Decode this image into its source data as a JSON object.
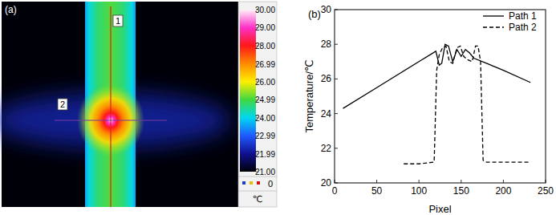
{
  "chart_data": [
    {
      "type": "thermal_image",
      "title": "(a)",
      "annotations": [
        "1",
        "2"
      ],
      "colorbar_lim": [
        21,
        30
      ],
      "colorbar_ticks": [
        {
          "value": 30,
          "label": "30.00"
        },
        {
          "value": 29,
          "label": "29.00"
        },
        {
          "value": 28,
          "label": "28.00"
        },
        26.99,
        {
          "value": 26,
          "label": "26.00"
        },
        24.99,
        {
          "value": 24,
          "label": "24.00"
        },
        22.99,
        21.99,
        {
          "value": 21,
          "label": "21.00"
        }
      ],
      "colorbar_unit": "℃",
      "colorbar_marker_label": "0",
      "colors": [
        "#fff0fa",
        "#ff30c8",
        "#ff1818",
        "#ff8a00",
        "#ffee00",
        "#40d840",
        "#00d8f0",
        "#1e5aff",
        "#101090",
        "#000008"
      ]
    },
    {
      "type": "line",
      "title": "(b)",
      "x_label": "Pixel",
      "y_label": "Temperature/℃",
      "xlim": [
        0,
        250
      ],
      "ylim": [
        20,
        30
      ],
      "xticks": [
        0,
        50,
        100,
        150,
        200,
        250
      ],
      "yticks": [
        20,
        22,
        24,
        26,
        28,
        30
      ],
      "legend": "top-right",
      "series": [
        {
          "name": "Path 1",
          "color": "#000000",
          "line_style": "solid",
          "x": [
            10,
            50,
            100,
            120,
            124,
            127,
            131,
            135,
            140,
            145,
            150,
            155,
            160,
            165,
            180,
            200,
            232
          ],
          "values": [
            24.3,
            25.5,
            27.0,
            27.6,
            26.8,
            26.9,
            28.0,
            27.9,
            27.0,
            27.7,
            27.3,
            27.7,
            27.5,
            27.2,
            26.9,
            26.5,
            25.8
          ]
        },
        {
          "name": "Path 2",
          "color": "#000000",
          "line_style": "dashed",
          "x": [
            82,
            100,
            118,
            121,
            124,
            128,
            132,
            136,
            140,
            145,
            149,
            153,
            158,
            163,
            167,
            170,
            173,
            176,
            180,
            200,
            230
          ],
          "values": [
            21.1,
            21.1,
            21.2,
            26.5,
            27.4,
            27.8,
            27.9,
            27.0,
            26.9,
            27.8,
            27.9,
            27.3,
            27.1,
            27.0,
            27.9,
            27.9,
            27.0,
            21.3,
            21.2,
            21.2,
            21.2
          ]
        }
      ]
    }
  ]
}
